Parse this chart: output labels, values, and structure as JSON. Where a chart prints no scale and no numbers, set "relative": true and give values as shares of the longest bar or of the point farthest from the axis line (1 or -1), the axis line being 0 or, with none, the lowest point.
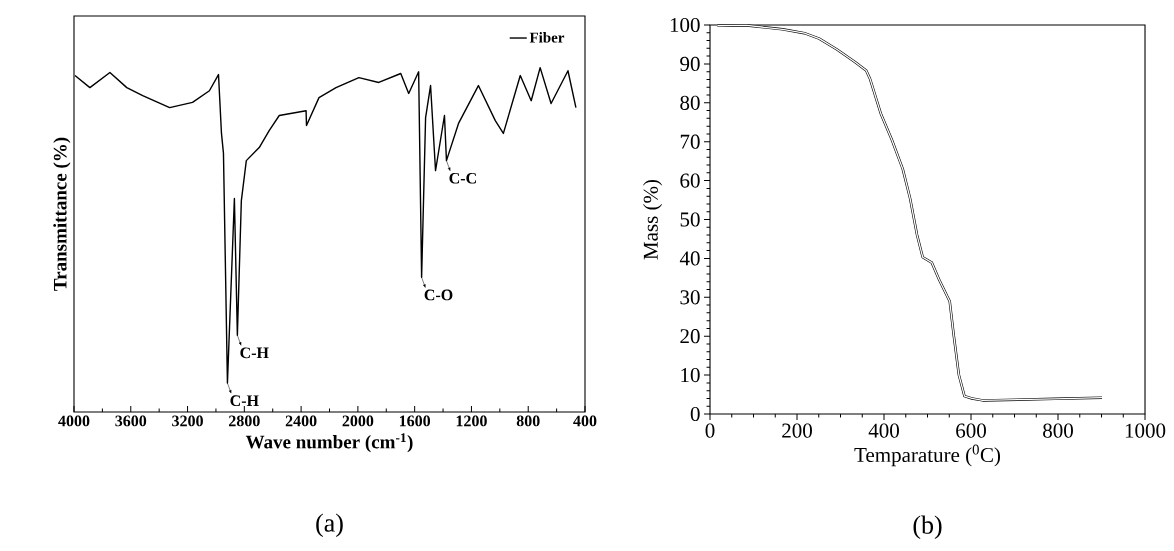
{
  "chart_data": [
    {
      "type": "line",
      "title": "(a)",
      "xlabel": "Wave number (cm$^{-1}$)",
      "ylabel": "Transmittance (%)",
      "relative": true,
      "xlim": [
        4000,
        400
      ],
      "xticks": [
        4000,
        3600,
        3200,
        2800,
        2400,
        2000,
        1600,
        1200,
        800,
        400
      ],
      "legend": "top right",
      "marker": "none",
      "series": [
        {
          "name": "Fiber",
          "color": "#000000",
          "x": [
            3993,
            3888,
            3747,
            3628,
            3516,
            3326,
            3165,
            3046,
            2982,
            2961,
            2947,
            2919,
            2870,
            2849,
            2821,
            2786,
            2695,
            2625,
            2554,
            2365,
            2362,
            2274,
            2154,
            1993,
            1853,
            1698,
            1642,
            1572,
            1551,
            1523,
            1488,
            1453,
            1390,
            1376,
            1291,
            1151,
            1032,
            975,
            856,
            779,
            716,
            639,
            520,
            464
          ],
          "values": [
            0.977,
            0.942,
            0.986,
            0.942,
            0.919,
            0.884,
            0.899,
            0.933,
            0.98,
            0.809,
            0.751,
            0.084,
            0.62,
            0.223,
            0.614,
            0.73,
            0.768,
            0.817,
            0.861,
            0.875,
            0.832,
            0.913,
            0.942,
            0.971,
            0.957,
            0.983,
            0.925,
            0.988,
            0.391,
            0.855,
            0.948,
            0.701,
            0.861,
            0.73,
            0.838,
            0.948,
            0.846,
            0.809,
            0.977,
            0.904,
            1.0,
            0.896,
            0.991,
            0.884
          ]
        }
      ],
      "annotations": [
        {
          "text": "C-H",
          "x": 2919,
          "y": 0.084
        },
        {
          "text": "C-H",
          "x": 2849,
          "y": 0.223
        },
        {
          "text": "C-O",
          "x": 1551,
          "y": 0.391
        },
        {
          "text": "C-C",
          "x": 1376,
          "y": 0.73
        }
      ]
    },
    {
      "type": "line",
      "title": "(b)",
      "xlabel": "Temparature ($^{0}$C)",
      "ylabel": "Mass (%)",
      "xlim": [
        0,
        1000
      ],
      "xticks": [
        0,
        200,
        400,
        600,
        800,
        1000
      ],
      "ylim": [
        0,
        100
      ],
      "yticks": [
        0,
        10,
        20,
        30,
        40,
        50,
        60,
        70,
        80,
        90,
        100
      ],
      "marker": "none",
      "series": [
        {
          "color": "#000000",
          "x": [
            17,
            84,
            167,
            217,
            251,
            292,
            334,
            359,
            368,
            393,
            418,
            443,
            460,
            476,
            489,
            510,
            526,
            547,
            551,
            560,
            572,
            585,
            602,
            627,
            794,
            901
          ],
          "values": [
            99.8,
            99.9,
            98.9,
            97.9,
            96.5,
            93.7,
            90.4,
            88.3,
            86.1,
            77.1,
            70.5,
            63.0,
            55.4,
            46.0,
            40.3,
            38.9,
            34.7,
            29.9,
            29.0,
            20.5,
            10.1,
            4.6,
            4.0,
            3.5,
            3.9,
            4.2
          ]
        }
      ]
    }
  ]
}
